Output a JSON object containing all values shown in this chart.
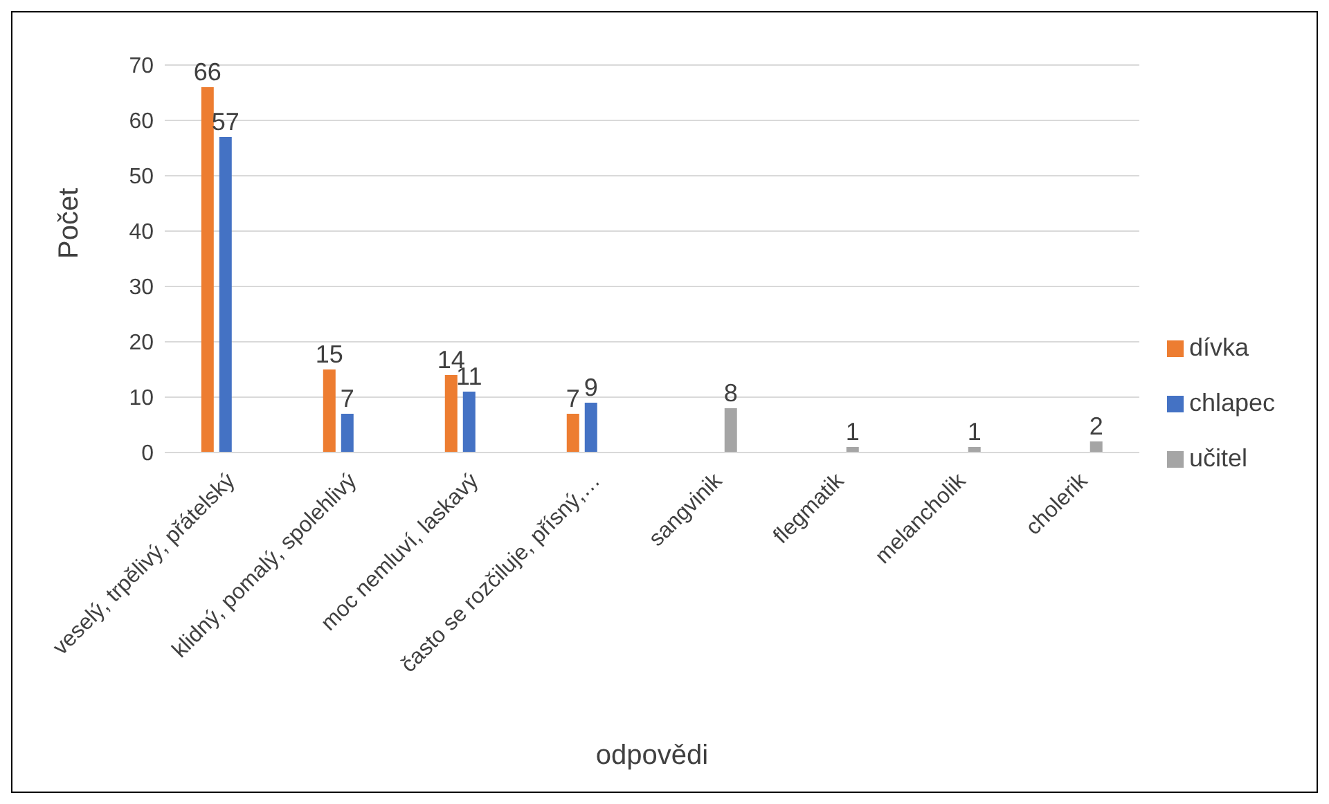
{
  "chart_data": {
    "type": "bar",
    "xlabel": "odpovědi",
    "ylabel": "Počet",
    "categories": [
      "veselý, trpělivý, přátelský",
      "klidný, pomalý, spolehlivý",
      "moc nemluví, laskavý",
      "často se rozčiluje, přísný,…",
      "sangvinik",
      "flegmatik",
      "melancholik",
      "cholerik"
    ],
    "series": [
      {
        "name": "dívka",
        "color": "#ed7d31",
        "values": [
          66,
          15,
          14,
          7,
          null,
          null,
          null,
          null
        ]
      },
      {
        "name": "chlapec",
        "color": "#4472c4",
        "values": [
          57,
          7,
          11,
          9,
          null,
          null,
          null,
          null
        ]
      },
      {
        "name": "učitel",
        "color": "#a5a5a5",
        "values": [
          null,
          null,
          null,
          null,
          8,
          1,
          1,
          2
        ]
      }
    ],
    "ylim": [
      0,
      70
    ],
    "yticks": [
      0,
      10,
      20,
      30,
      40,
      50,
      60,
      70
    ],
    "grid": "y",
    "legend": "right",
    "data_labels": true
  }
}
